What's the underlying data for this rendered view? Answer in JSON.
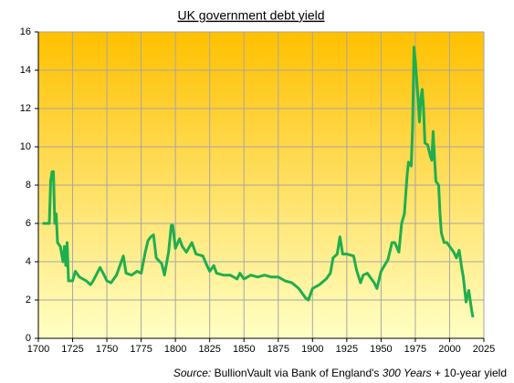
{
  "chart_data": {
    "type": "line",
    "title": "UK government  debt yield",
    "source_label": "Source:",
    "source_text": "BullionVault via Bank of England's",
    "source_work": "300 Years",
    "source_tail": "+ 10-year  yield",
    "x": [
      1703,
      1708,
      1709,
      1710,
      1711,
      1712,
      1713,
      1714,
      1716,
      1718,
      1719,
      1720,
      1721,
      1722,
      1725,
      1727,
      1730,
      1735,
      1738,
      1740,
      1745,
      1748,
      1750,
      1753,
      1757,
      1760,
      1762,
      1764,
      1768,
      1772,
      1775,
      1778,
      1780,
      1782,
      1784,
      1786,
      1790,
      1792,
      1795,
      1797,
      1798,
      1800,
      1803,
      1805,
      1808,
      1812,
      1815,
      1820,
      1823,
      1825,
      1828,
      1830,
      1835,
      1840,
      1845,
      1847,
      1850,
      1855,
      1860,
      1865,
      1870,
      1875,
      1880,
      1885,
      1890,
      1895,
      1897,
      1900,
      1905,
      1910,
      1913,
      1915,
      1918,
      1920,
      1922,
      1925,
      1930,
      1932,
      1935,
      1937,
      1940,
      1945,
      1947,
      1950,
      1955,
      1958,
      1960,
      1963,
      1965,
      1967,
      1969,
      1970,
      1972,
      1973,
      1974,
      1975,
      1976,
      1977,
      1978,
      1979,
      1980,
      1981,
      1982,
      1984,
      1986,
      1987,
      1988,
      1989,
      1990,
      1992,
      1993,
      1994,
      1996,
      1998,
      2000,
      2003,
      2005,
      2007,
      2009,
      2010,
      2012,
      2014,
      2016,
      2017
    ],
    "series": [
      {
        "color": "#1fae4e",
        "values": [
          6,
          6,
          8.2,
          8.7,
          8.7,
          6,
          6.5,
          5,
          4.8,
          4,
          4.8,
          3.8,
          5,
          3,
          3,
          3.5,
          3.2,
          3,
          2.8,
          3,
          3.7,
          3.3,
          3,
          2.9,
          3.3,
          3.9,
          4.3,
          3.4,
          3.3,
          3.5,
          3.4,
          4.5,
          5.1,
          5.3,
          5.4,
          4.2,
          3.9,
          3.3,
          4.5,
          5.9,
          5.9,
          4.7,
          5.2,
          4.8,
          4.5,
          5,
          4.4,
          4.3,
          3.8,
          3.5,
          3.8,
          3.4,
          3.3,
          3.3,
          3.1,
          3.4,
          3.1,
          3.3,
          3.2,
          3.3,
          3.2,
          3.2,
          3,
          2.9,
          2.6,
          2.1,
          2,
          2.6,
          2.8,
          3.1,
          3.4,
          4.2,
          4.4,
          5.3,
          4.4,
          4.4,
          4.3,
          3.6,
          2.9,
          3.3,
          3.4,
          2.9,
          2.6,
          3.5,
          4.1,
          5,
          5,
          4.5,
          6,
          6.5,
          8.5,
          9.2,
          9,
          11,
          15.2,
          14.5,
          13.5,
          12.5,
          11.3,
          12.5,
          13,
          12,
          10.2,
          10.1,
          9.5,
          9.3,
          10.8,
          9.4,
          8.2,
          8,
          6.5,
          5.5,
          5,
          5,
          4.8,
          4.5,
          4.2,
          4.6,
          3.6,
          3.2,
          1.9,
          2.5,
          1.5,
          1.1
        ]
      }
    ],
    "xlim": [
      1700,
      2025
    ],
    "xticks": [
      1700,
      1725,
      1750,
      1775,
      1800,
      1825,
      1850,
      1875,
      1900,
      1925,
      1950,
      1975,
      2000,
      2025
    ],
    "ylim": [
      0,
      16
    ],
    "yticks": [
      0,
      2,
      4,
      6,
      8,
      10,
      12,
      14,
      16
    ],
    "grid": true
  }
}
